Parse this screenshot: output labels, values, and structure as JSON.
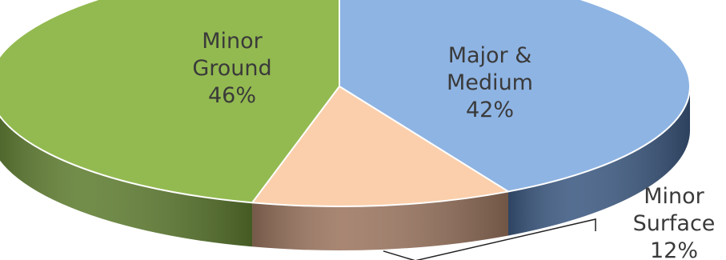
{
  "chart_data": {
    "type": "pie",
    "style": "3d",
    "title": "",
    "slices": [
      {
        "label_lines": [
          "Major &",
          "Medium"
        ],
        "percent_label": "42%",
        "value": 42,
        "color": "#8eb4e3",
        "side_color": "#3d5a82"
      },
      {
        "label_lines": [
          "Minor",
          "Surface"
        ],
        "percent_label": "12%",
        "value": 12,
        "color": "#fbcfac",
        "side_color": "#9c7660"
      },
      {
        "label_lines": [
          "Minor",
          "Ground"
        ],
        "percent_label": "46%",
        "value": 46,
        "color": "#93ba50",
        "side_color": "#5f7d31"
      }
    ]
  }
}
